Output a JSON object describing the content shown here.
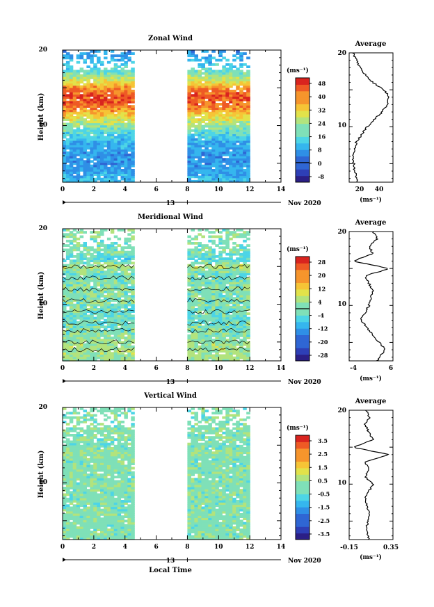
{
  "panels": [
    {
      "title": "Zonal Wind",
      "ylabel": "Height (km)",
      "x_ticks": [
        "0",
        "2",
        "4",
        "6",
        "8",
        "10",
        "12",
        "14"
      ],
      "y_ticks": [
        "10",
        "20"
      ],
      "date_tick": "13",
      "date_label": "Nov 2020",
      "unit_label": "(ms⁻¹)",
      "colorbar_ticks": [
        "48",
        "40",
        "32",
        "24",
        "16",
        "8",
        "0",
        "-8"
      ],
      "avg_title": "Average",
      "avg_x_ticks": [
        "20",
        "40"
      ],
      "avg_y_ticks": [
        "10",
        "20"
      ],
      "avg_unit": "(ms⁻¹)"
    },
    {
      "title": "Meridional Wind",
      "ylabel": "Height (km)",
      "x_ticks": [
        "0",
        "2",
        "4",
        "6",
        "8",
        "10",
        "12",
        "14"
      ],
      "y_ticks": [
        "10",
        "20"
      ],
      "date_tick": "13",
      "date_label": "Nov 2020",
      "unit_label": "(ms⁻¹)",
      "colorbar_ticks": [
        "28",
        "20",
        "12",
        "4",
        "-4",
        "-12",
        "-20",
        "-28"
      ],
      "avg_title": "Average",
      "avg_x_ticks": [
        "-4",
        "6"
      ],
      "avg_y_ticks": [
        "10",
        "20"
      ],
      "avg_unit": "(ms⁻¹)"
    },
    {
      "title": "Vertical Wind",
      "ylabel": "Height (km)",
      "x_ticks": [
        "0",
        "2",
        "4",
        "6",
        "8",
        "10",
        "12",
        "14"
      ],
      "y_ticks": [
        "10",
        "20"
      ],
      "date_tick": "13",
      "date_label": "Nov 2020",
      "unit_label": "(ms⁻¹)",
      "colorbar_ticks": [
        "3.5",
        "2.5",
        "1.5",
        "0.5",
        "-0.5",
        "-1.5",
        "-2.5",
        "-3.5"
      ],
      "avg_title": "Average",
      "avg_x_ticks": [
        "-0.15",
        "0.35"
      ],
      "avg_y_ticks": [
        "10",
        "20"
      ],
      "avg_unit": "(ms⁻¹)",
      "xlabel": "Local Time"
    }
  ],
  "chart_data": [
    {
      "type": "heatmap",
      "title": "Zonal Wind",
      "xlabel": "",
      "ylabel": "Height (km)",
      "xlim": [
        0,
        14
      ],
      "ylim": [
        2.5,
        20
      ],
      "data_time_ranges": [
        [
          0,
          4.6
        ],
        [
          8,
          12
        ]
      ],
      "colorbar": {
        "min": -12,
        "max": 52,
        "zero_line": 0
      },
      "profile_km": [
        2.5,
        4,
        6,
        8,
        10,
        11,
        12,
        13,
        14,
        15,
        16,
        17,
        18,
        19,
        20
      ],
      "profile_ms": [
        12,
        8,
        6,
        10,
        22,
        30,
        38,
        44,
        46,
        40,
        28,
        20,
        14,
        10,
        6
      ]
    },
    {
      "type": "heatmap",
      "title": "Meridional Wind",
      "xlabel": "",
      "ylabel": "Height (km)",
      "xlim": [
        0,
        14
      ],
      "ylim": [
        2.5,
        20
      ],
      "data_time_ranges": [
        [
          0,
          4.6
        ],
        [
          8,
          12
        ]
      ],
      "colorbar": {
        "min": -32,
        "max": 32,
        "zero_line": 0
      },
      "profile_km": [
        2.5,
        4,
        6,
        8,
        10,
        12,
        14,
        15,
        16,
        17,
        18,
        19,
        20
      ],
      "profile_ms": [
        2,
        4,
        1,
        -2,
        0,
        1,
        -1,
        5,
        -4,
        1,
        0,
        2,
        1
      ]
    },
    {
      "type": "heatmap",
      "title": "Vertical Wind",
      "xlabel": "Local Time",
      "ylabel": "Height (km)",
      "xlim": [
        0,
        14
      ],
      "ylim": [
        2.5,
        20
      ],
      "data_time_ranges": [
        [
          0,
          4.6
        ],
        [
          8,
          12
        ]
      ],
      "colorbar": {
        "min": -4,
        "max": 4
      },
      "profile_km": [
        2.5,
        4,
        6,
        8,
        10,
        11,
        12,
        13,
        14,
        15,
        16,
        17,
        18,
        19,
        20
      ],
      "profile_ms": [
        0.05,
        0.02,
        0.05,
        0.0,
        0.1,
        0.0,
        0.05,
        0.0,
        0.3,
        -0.15,
        0.1,
        0.05,
        0.0,
        0.05,
        0.02
      ]
    }
  ]
}
